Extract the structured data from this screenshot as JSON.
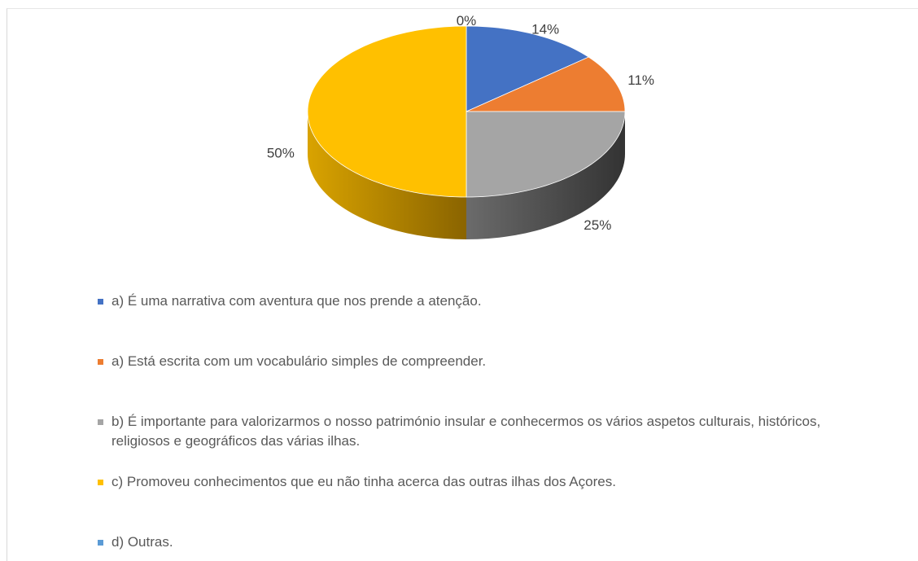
{
  "chart_data": {
    "type": "pie",
    "categories": [
      "a) É uma narrativa com aventura que nos prende a atenção.",
      "a) Está escrita com um vocabulário simples de compreender.",
      "b) É importante para valorizarmos o nosso património insular e conhecermos os vários aspetos culturais, históricos, religiosos e geográficos das várias ilhas.",
      "c) Promoveu conhecimentos que eu não tinha acerca das outras ilhas dos Açores.",
      "d) Outras."
    ],
    "values": [
      14,
      11,
      25,
      50,
      0
    ],
    "value_labels": [
      "14%",
      "11%",
      "25%",
      "50%",
      "0%"
    ],
    "colors": [
      "#4472c4",
      "#ed7d31",
      "#a5a5a5",
      "#ffc000",
      "#5b9bd5"
    ]
  }
}
